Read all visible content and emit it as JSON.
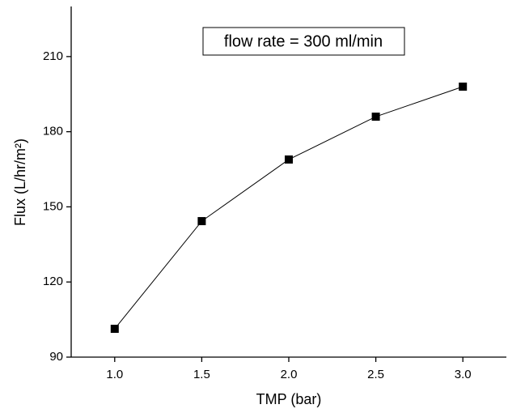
{
  "chart_data": {
    "type": "line",
    "x": [
      1.0,
      1.5,
      2.0,
      2.5,
      3.0
    ],
    "values": [
      101.3,
      144.3,
      168.9,
      186,
      198
    ],
    "color": "#000000",
    "xlabel": "TMP (bar)",
    "ylabel": "Flux (L/hr/m²)",
    "annotation": "flow rate = 300 ml/min",
    "xlim": [
      0.75,
      3.25
    ],
    "ylim": [
      90,
      230
    ],
    "xticks": [
      {
        "value": 1,
        "label": "1.0"
      },
      {
        "value": 1.5,
        "label": "1.5"
      },
      {
        "value": 2,
        "label": "2.0"
      },
      {
        "value": 2.5,
        "label": "2.5"
      },
      {
        "value": 3,
        "label": "3.0"
      }
    ],
    "yticks": [
      90,
      120,
      150,
      180,
      210
    ]
  }
}
